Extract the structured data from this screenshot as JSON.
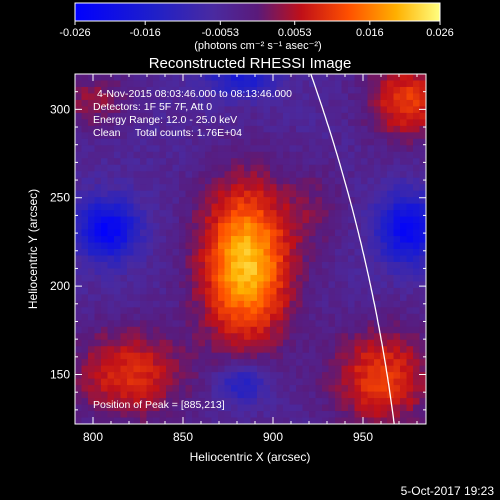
{
  "chart_data": {
    "type": "heatmap",
    "title": "Reconstructed RHESSI Image",
    "annotations": [
      "4-Nov-2015 08:03:46.000 to 08:13:46.000",
      "Detectors: 1F 5F 7F, Att 0",
      "Energy Range: 12.0 - 25.0 keV",
      "Clean     Total counts: 1.76E+04"
    ],
    "peak_label": "Position of Peak = [885,213]",
    "peak": [
      885,
      213
    ],
    "xlabel": "Heliocentric X (arcsec)",
    "ylabel": "Heliocentric Y (arcsec)",
    "xlim": [
      790,
      985
    ],
    "ylim": [
      122,
      320
    ],
    "xticks": [
      800,
      850,
      900,
      950
    ],
    "xtick_labels": [
      "800",
      "850",
      "900",
      "950"
    ],
    "yticks": [
      150,
      200,
      250,
      300
    ],
    "ytick_labels": [
      "150",
      "200",
      "250",
      "300"
    ],
    "colorbar": {
      "range": [
        -0.026,
        0.026
      ],
      "ticks": [
        -0.026,
        -0.016,
        -0.0053,
        0.0053,
        0.016,
        0.026
      ],
      "tick_labels": [
        "-0.026",
        "-0.016",
        "-0.0053",
        "0.0053",
        "0.016",
        "0.026"
      ],
      "unit_label": "(photons cm⁻² s⁻¹ asec⁻²)"
    },
    "sources": [
      {
        "x": 885,
        "y": 213,
        "amp": 0.026,
        "sx": 18,
        "sy": 32
      },
      {
        "x": 820,
        "y": 150,
        "amp": 0.014,
        "sx": 22,
        "sy": 18
      },
      {
        "x": 960,
        "y": 148,
        "amp": 0.015,
        "sx": 20,
        "sy": 20
      },
      {
        "x": 975,
        "y": 305,
        "amp": 0.015,
        "sx": 16,
        "sy": 16
      },
      {
        "x": 800,
        "y": 305,
        "amp": 0.008,
        "sx": 14,
        "sy": 12
      },
      {
        "x": 925,
        "y": 245,
        "amp": 0.005,
        "sx": 12,
        "sy": 16
      }
    ],
    "negatives": [
      {
        "x": 808,
        "y": 232,
        "amp": -0.02,
        "sx": 12,
        "sy": 12
      },
      {
        "x": 975,
        "y": 232,
        "amp": -0.019,
        "sx": 12,
        "sy": 14
      },
      {
        "x": 883,
        "y": 145,
        "amp": -0.012,
        "sx": 10,
        "sy": 8
      },
      {
        "x": 882,
        "y": 318,
        "amp": -0.012,
        "sx": 14,
        "sy": 8
      }
    ]
  },
  "footer": {
    "date": "5-Oct-2017 19:23"
  }
}
